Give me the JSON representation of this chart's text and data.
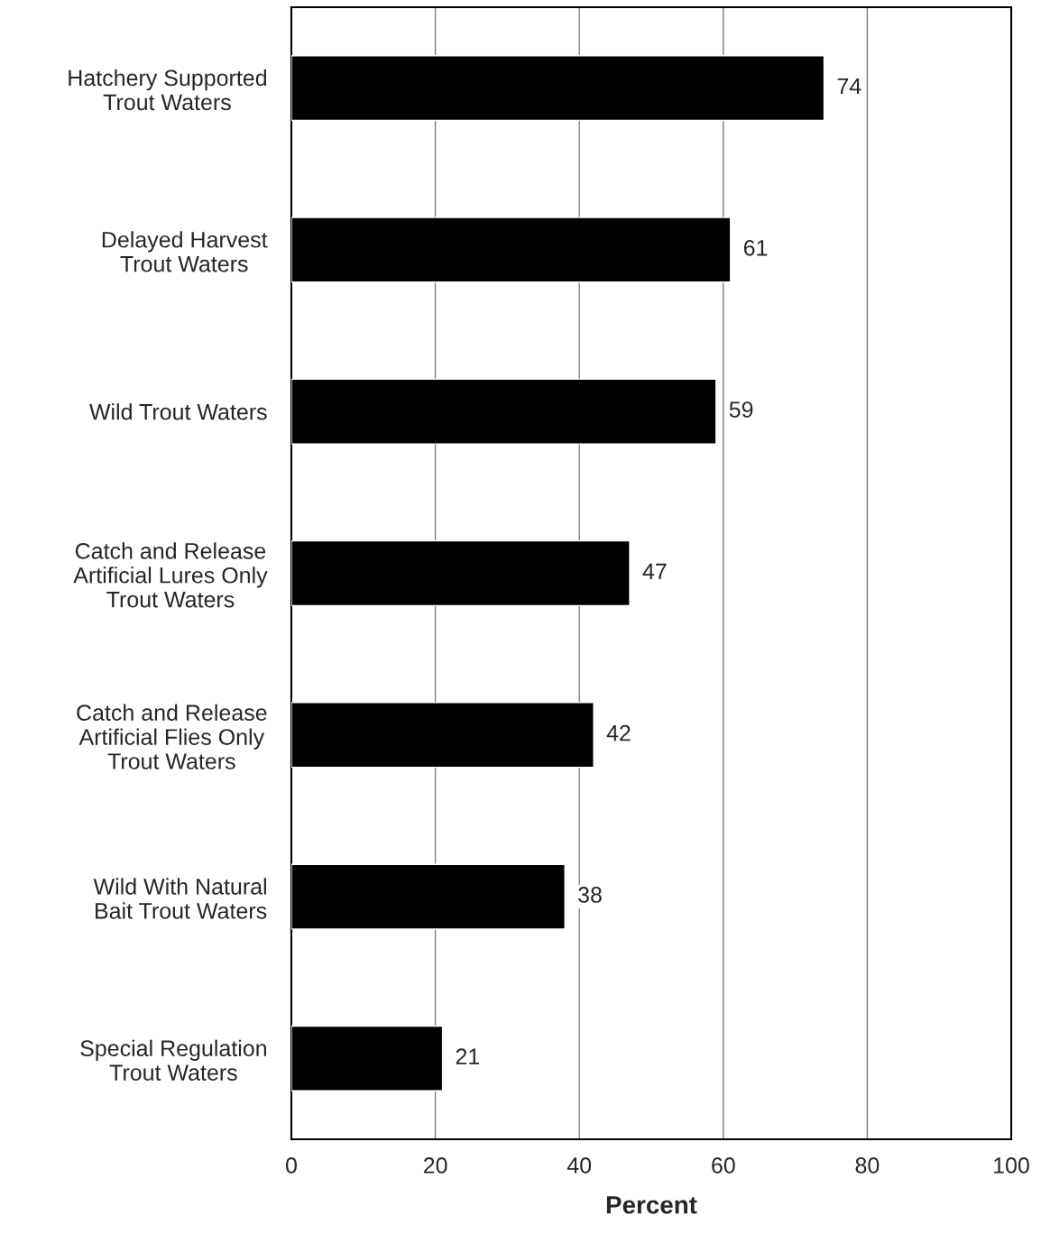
{
  "chart_data": {
    "type": "bar",
    "orientation": "horizontal",
    "categories": [
      "Hatchery Supported\nTrout Waters",
      "Delayed Harvest\nTrout Waters",
      "Wild Trout Waters",
      "Catch and Release\nArtificial Lures Only\nTrout Waters",
      "Catch and Release\nArtificial Flies Only\nTrout Waters",
      "Wild With Natural\nBait Trout Waters",
      "Special Regulation\nTrout Waters"
    ],
    "values": [
      74,
      61,
      59,
      47,
      42,
      38,
      21
    ],
    "color": "#000000",
    "xlabel": "Percent",
    "xlim": [
      0,
      100
    ],
    "xticks": [
      0,
      20,
      40,
      60,
      80,
      100
    ],
    "grid": "x",
    "data_labels": true
  }
}
